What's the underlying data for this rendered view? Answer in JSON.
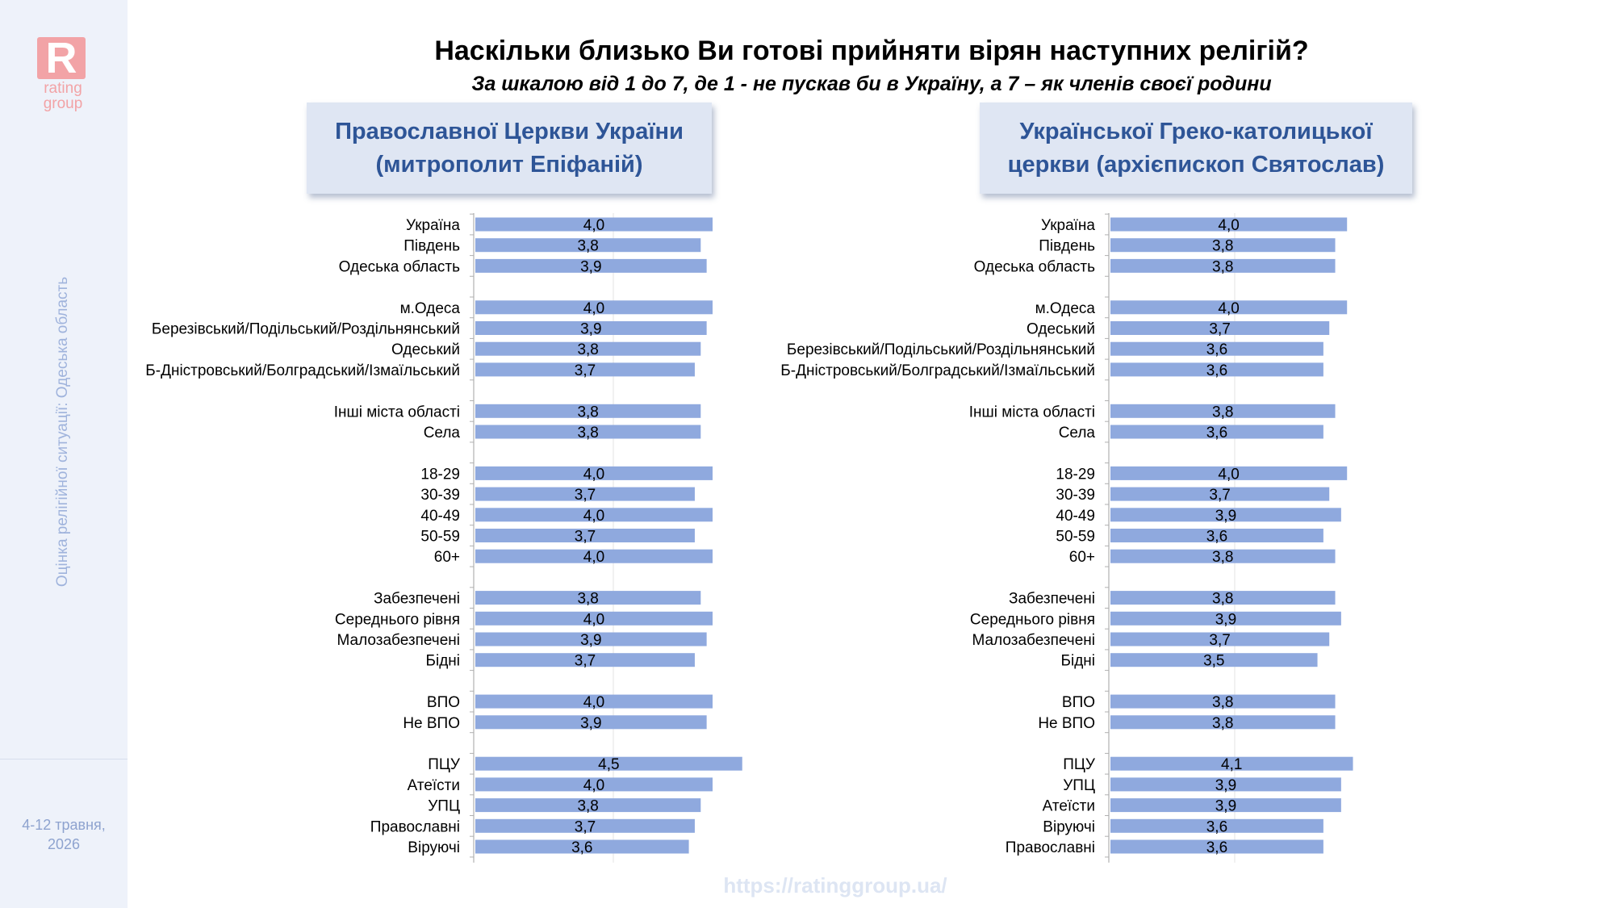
{
  "brand": {
    "logo_letter": "R",
    "logo_text_1": "rating",
    "logo_text_2": "group",
    "color": "#f2a3a6"
  },
  "sidebar": {
    "vertical_text": "Оцінка релігійної ситуації: Одеська область",
    "date_line1": "4-12 травня,",
    "date_line2": "2026"
  },
  "title": "Наскільки близько Ви готові прийняти вірян наступних релігій?",
  "subtitle": "За шкалою від 1 до 7, де 1 - не пускав би в Україну, а 7 – як членів своєї родини",
  "footer": {
    "url": "https://ratinggroup.ua/"
  },
  "colors": {
    "bar": "#8fa9de",
    "panel_header_bg": "#dfe6f3",
    "panel_header_text": "#2e5597"
  },
  "chart_data": [
    {
      "type": "bar",
      "orientation": "horizontal",
      "title_line1": "Православної Церкви України",
      "title_line2": "(митрополит Епіфаній)",
      "xlim": [
        0,
        7
      ],
      "categories": [
        "Україна",
        "Південь",
        "Одеська область",
        "",
        "м.Одеса",
        "Березівський/Подільський/Роздільнянський",
        "Одеський",
        "Б-Дністровський/Болградський/Ізмаїльський",
        "",
        "Інші міста області",
        "Села",
        "",
        "18-29",
        "30-39",
        "40-49",
        "50-59",
        "60+",
        "",
        "Забезпечені",
        "Середнього рівня",
        "Малозабезпечені",
        "Бідні",
        "",
        "ВПО",
        "Не ВПО",
        "",
        "ПЦУ",
        "Атеїсти",
        "УПЦ",
        "Православні",
        "Віруючі"
      ],
      "values": [
        4.0,
        3.8,
        3.9,
        null,
        4.0,
        3.9,
        3.8,
        3.7,
        null,
        3.8,
        3.8,
        null,
        4.0,
        3.7,
        4.0,
        3.7,
        4.0,
        null,
        3.8,
        4.0,
        3.9,
        3.7,
        null,
        4.0,
        3.9,
        null,
        4.5,
        4.0,
        3.8,
        3.7,
        3.6
      ],
      "labels": [
        "4,0",
        "3,8",
        "3,9",
        "",
        "4,0",
        "3,9",
        "3,8",
        "3,7",
        "",
        "3,8",
        "3,8",
        "",
        "4,0",
        "3,7",
        "4,0",
        "3,7",
        "4,0",
        "",
        "3,8",
        "4,0",
        "3,9",
        "3,7",
        "",
        "4,0",
        "3,9",
        "",
        "4,5",
        "4,0",
        "3,8",
        "3,7",
        "3,6"
      ]
    },
    {
      "type": "bar",
      "orientation": "horizontal",
      "title_line1": "Української Греко-католицької",
      "title_line2": "церкви (архієпископ Святослав)",
      "xlim": [
        0,
        7
      ],
      "categories": [
        "Україна",
        "Південь",
        "Одеська область",
        "",
        "м.Одеса",
        "Одеський",
        "Березівський/Подільський/Роздільнянський",
        "Б-Дністровський/Болградський/Ізмаїльський",
        "",
        "Інші міста області",
        "Села",
        "",
        "18-29",
        "30-39",
        "40-49",
        "50-59",
        "60+",
        "",
        "Забезпечені",
        "Середнього рівня",
        "Малозабезпечені",
        "Бідні",
        "",
        "ВПО",
        "Не ВПО",
        "",
        "ПЦУ",
        "УПЦ",
        "Атеїсти",
        "Віруючі",
        "Православні"
      ],
      "values": [
        4.0,
        3.8,
        3.8,
        null,
        4.0,
        3.7,
        3.6,
        3.6,
        null,
        3.8,
        3.6,
        null,
        4.0,
        3.7,
        3.9,
        3.6,
        3.8,
        null,
        3.8,
        3.9,
        3.7,
        3.5,
        null,
        3.8,
        3.8,
        null,
        4.1,
        3.9,
        3.9,
        3.6,
        3.6
      ],
      "labels": [
        "4,0",
        "3,8",
        "3,8",
        "",
        "4,0",
        "3,7",
        "3,6",
        "3,6",
        "",
        "3,8",
        "3,6",
        "",
        "4,0",
        "3,7",
        "3,9",
        "3,6",
        "3,8",
        "",
        "3,8",
        "3,9",
        "3,7",
        "3,5",
        "",
        "3,8",
        "3,8",
        "",
        "4,1",
        "3,9",
        "3,9",
        "3,6",
        "3,6"
      ]
    }
  ]
}
